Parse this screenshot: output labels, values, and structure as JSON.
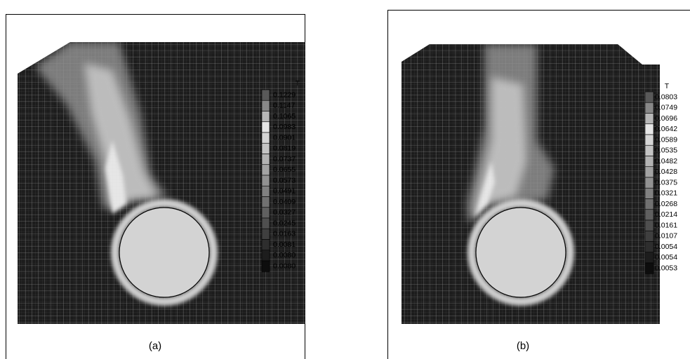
{
  "panels": [
    {
      "caption": "(a)",
      "legend": {
        "title": "T",
        "labels": [
          "0.1229",
          "0.1147",
          "0.1065",
          "0.0983",
          "0.0901",
          "0.0819",
          "0.0737",
          "0.0655",
          "0.0573",
          "0.0491",
          "0.0409",
          "0.0327",
          "0.0245",
          "0.0163",
          "0.0081",
          "0.0080",
          "0.0080"
        ]
      }
    },
    {
      "caption": "(b)",
      "legend": {
        "title": "T",
        "labels": [
          "0.0803",
          "0.0749",
          "0.0696",
          "0.0642",
          "0.0589",
          "0.0535",
          "0.0482",
          "0.0428",
          "0.0375",
          "0.0321",
          "0.0268",
          "0.0214",
          "0.0161",
          "0.0107",
          "0.0054",
          "0.0054",
          "0.0053"
        ]
      }
    }
  ]
}
